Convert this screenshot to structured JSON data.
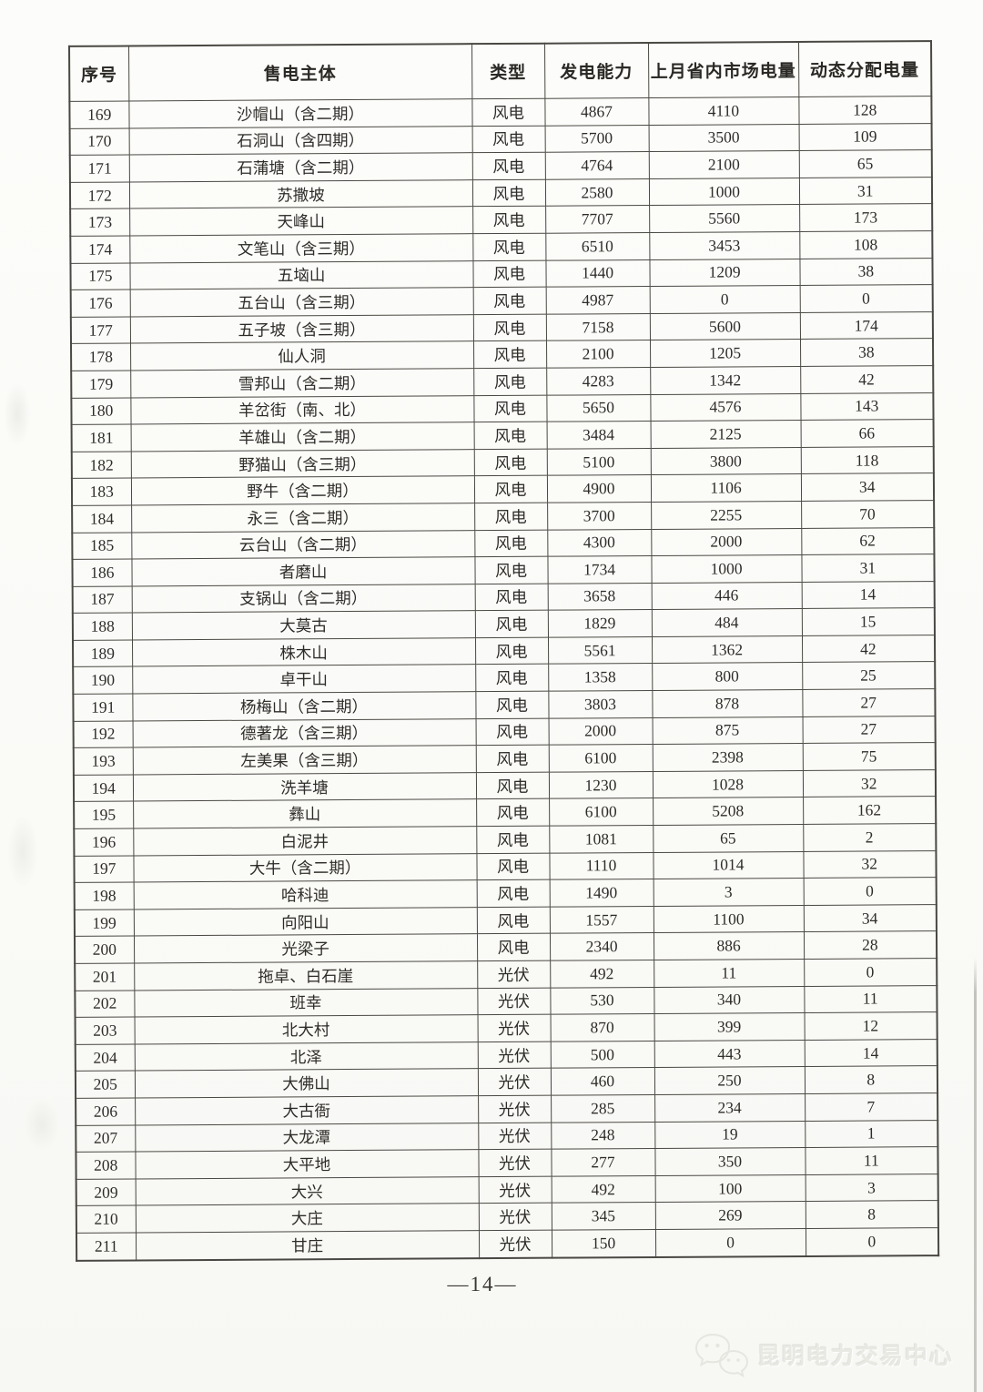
{
  "page": {
    "page_number": "—14—",
    "watermark_text": "昆明电力交易中心",
    "colors": {
      "table_line": "#4a4842",
      "text": "#2e2c29",
      "watermark": "#e9e9e3",
      "background": "#fbfbf8"
    }
  },
  "table": {
    "headers": [
      "序号",
      "售电主体",
      "类型",
      "发电能力",
      "上月省内市场电量",
      "动态分配电量"
    ],
    "rows": [
      [
        "169",
        "沙帽山（含二期）",
        "风电",
        "4867",
        "4110",
        "128"
      ],
      [
        "170",
        "石洞山（含四期）",
        "风电",
        "5700",
        "3500",
        "109"
      ],
      [
        "171",
        "石蒲塘（含二期）",
        "风电",
        "4764",
        "2100",
        "65"
      ],
      [
        "172",
        "苏撒坡",
        "风电",
        "2580",
        "1000",
        "31"
      ],
      [
        "173",
        "天峰山",
        "风电",
        "7707",
        "5560",
        "173"
      ],
      [
        "174",
        "文笔山（含三期）",
        "风电",
        "6510",
        "3453",
        "108"
      ],
      [
        "175",
        "五垴山",
        "风电",
        "1440",
        "1209",
        "38"
      ],
      [
        "176",
        "五台山（含三期）",
        "风电",
        "4987",
        "0",
        "0"
      ],
      [
        "177",
        "五子坡（含三期）",
        "风电",
        "7158",
        "5600",
        "174"
      ],
      [
        "178",
        "仙人洞",
        "风电",
        "2100",
        "1205",
        "38"
      ],
      [
        "179",
        "雪邦山（含二期）",
        "风电",
        "4283",
        "1342",
        "42"
      ],
      [
        "180",
        "羊岔街（南、北）",
        "风电",
        "5650",
        "4576",
        "143"
      ],
      [
        "181",
        "羊雄山（含二期）",
        "风电",
        "3484",
        "2125",
        "66"
      ],
      [
        "182",
        "野猫山（含三期）",
        "风电",
        "5100",
        "3800",
        "118"
      ],
      [
        "183",
        "野牛（含二期）",
        "风电",
        "4900",
        "1106",
        "34"
      ],
      [
        "184",
        "永三（含二期）",
        "风电",
        "3700",
        "2255",
        "70"
      ],
      [
        "185",
        "云台山（含二期）",
        "风电",
        "4300",
        "2000",
        "62"
      ],
      [
        "186",
        "者磨山",
        "风电",
        "1734",
        "1000",
        "31"
      ],
      [
        "187",
        "支锅山（含二期）",
        "风电",
        "3658",
        "446",
        "14"
      ],
      [
        "188",
        "大莫古",
        "风电",
        "1829",
        "484",
        "15"
      ],
      [
        "189",
        "株木山",
        "风电",
        "5561",
        "1362",
        "42"
      ],
      [
        "190",
        "卓干山",
        "风电",
        "1358",
        "800",
        "25"
      ],
      [
        "191",
        "杨梅山（含二期）",
        "风电",
        "3803",
        "878",
        "27"
      ],
      [
        "192",
        "德著龙（含三期）",
        "风电",
        "2000",
        "875",
        "27"
      ],
      [
        "193",
        "左美果（含三期）",
        "风电",
        "6100",
        "2398",
        "75"
      ],
      [
        "194",
        "洗羊塘",
        "风电",
        "1230",
        "1028",
        "32"
      ],
      [
        "195",
        "彝山",
        "风电",
        "6100",
        "5208",
        "162"
      ],
      [
        "196",
        "白泥井",
        "风电",
        "1081",
        "65",
        "2"
      ],
      [
        "197",
        "大牛（含二期）",
        "风电",
        "1110",
        "1014",
        "32"
      ],
      [
        "198",
        "哈科迪",
        "风电",
        "1490",
        "3",
        "0"
      ],
      [
        "199",
        "向阳山",
        "风电",
        "1557",
        "1100",
        "34"
      ],
      [
        "200",
        "光梁子",
        "风电",
        "2340",
        "886",
        "28"
      ],
      [
        "201",
        "拖卓、白石崖",
        "光伏",
        "492",
        "11",
        "0"
      ],
      [
        "202",
        "班幸",
        "光伏",
        "530",
        "340",
        "11"
      ],
      [
        "203",
        "北大村",
        "光伏",
        "870",
        "399",
        "12"
      ],
      [
        "204",
        "北泽",
        "光伏",
        "500",
        "443",
        "14"
      ],
      [
        "205",
        "大佛山",
        "光伏",
        "460",
        "250",
        "8"
      ],
      [
        "206",
        "大古衙",
        "光伏",
        "285",
        "234",
        "7"
      ],
      [
        "207",
        "大龙潭",
        "光伏",
        "248",
        "19",
        "1"
      ],
      [
        "208",
        "大平地",
        "光伏",
        "277",
        "350",
        "11"
      ],
      [
        "209",
        "大兴",
        "光伏",
        "492",
        "100",
        "3"
      ],
      [
        "210",
        "大庄",
        "光伏",
        "345",
        "269",
        "8"
      ],
      [
        "211",
        "甘庄",
        "光伏",
        "150",
        "0",
        "0"
      ]
    ]
  }
}
